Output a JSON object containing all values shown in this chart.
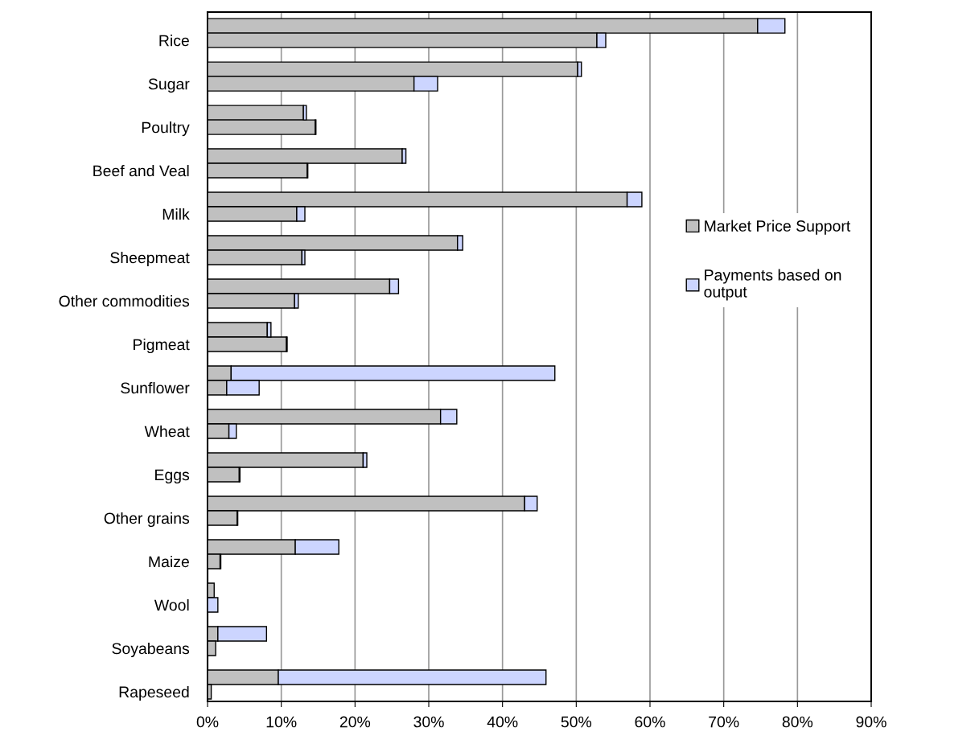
{
  "chart_data": {
    "type": "bar",
    "orientation": "horizontal",
    "stacked": true,
    "categories": [
      null,
      "Rice",
      null,
      null,
      "Sugar",
      null,
      null,
      "Poultry",
      null,
      null,
      "Beef and Veal",
      null,
      null,
      "Milk",
      null,
      null,
      "Sheepmeat",
      null,
      null,
      "Other commodities",
      null,
      null,
      "Pigmeat",
      null,
      null,
      "Sunflower",
      null,
      null,
      "Wheat",
      null,
      null,
      "Eggs",
      null,
      null,
      "Other grains",
      null,
      null,
      "Maize",
      null,
      null,
      "Wool",
      null,
      null,
      "Soyabeans",
      null,
      null,
      "Rapeseed"
    ],
    "series": [
      {
        "name": "Market Price Support",
        "color": "#c0c0c0",
        "values": [
          74.6,
          52.8,
          null,
          50.2,
          28.0,
          null,
          13.0,
          14.6,
          null,
          26.4,
          13.5,
          null,
          56.9,
          12.1,
          null,
          33.9,
          12.8,
          null,
          24.7,
          11.8,
          null,
          8.1,
          10.7,
          null,
          3.2,
          2.6,
          null,
          31.6,
          2.9,
          null,
          21.1,
          4.3,
          null,
          43.0,
          4.0,
          null,
          11.9,
          1.7,
          null,
          0.9,
          null,
          null,
          1.4,
          1.1,
          null,
          9.6,
          0.5
        ]
      },
      {
        "name": "Payments based on output",
        "color": "#ccd5ff",
        "values": [
          3.7,
          1.2,
          null,
          0.5,
          3.2,
          null,
          0.4,
          0.1,
          null,
          0.5,
          0.1,
          null,
          2.0,
          1.1,
          null,
          0.7,
          0.4,
          null,
          1.2,
          0.5,
          null,
          0.5,
          0.1,
          null,
          43.9,
          4.4,
          null,
          2.2,
          1.0,
          null,
          0.5,
          0.1,
          null,
          1.7,
          0.1,
          null,
          5.9,
          0.1,
          null,
          null,
          1.4,
          null,
          6.6,
          null,
          null,
          36.3,
          null
        ]
      }
    ],
    "xlim": [
      0,
      90
    ],
    "xticks": [
      {
        "value": 0,
        "label": "0%"
      },
      {
        "value": 10,
        "label": "10%"
      },
      {
        "value": 20,
        "label": "20%"
      },
      {
        "value": 30,
        "label": "30%"
      },
      {
        "value": 40,
        "label": "40%"
      },
      {
        "value": 50,
        "label": "50%"
      },
      {
        "value": 60,
        "label": "60%"
      },
      {
        "value": 70,
        "label": "70%"
      },
      {
        "value": 80,
        "label": "80%"
      },
      {
        "value": 90,
        "label": "90%"
      }
    ],
    "grid": "x",
    "legend": "right"
  }
}
